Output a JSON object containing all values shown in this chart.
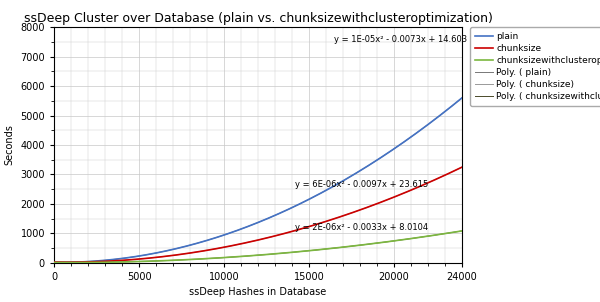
{
  "title": "ssDeep Cluster over Database (plain vs. chunksizewithclusteroptimization)",
  "xlabel": "ssDeep Hashes in Database",
  "ylabel": "Seconds",
  "xlim": [
    0,
    24000
  ],
  "ylim": [
    0,
    8000
  ],
  "xticks": [
    0,
    5000,
    10000,
    15000,
    20000,
    24000
  ],
  "yticks": [
    0,
    1000,
    2000,
    3000,
    4000,
    5000,
    6000,
    7000,
    8000
  ],
  "plain_color": "#4472C4",
  "chunksize_color": "#CC0000",
  "chunksize_opt_color": "#7CB740",
  "poly_plain_color": "#777777",
  "poly_chunksize_color": "#999999",
  "poly_chunksize_opt_color": "#4A4A2A",
  "poly_plain_label": "Poly. ( plain)",
  "poly_chunksize_label": "Poly. ( chunksize)",
  "poly_chunksize_opt_label": "Poly. ( chunksizewithclusteroptimization)",
  "plain_label": "plain",
  "chunksize_label": "chunksize",
  "chunksize_opt_label": "chunksizewithclusteroptimization",
  "plain_eq": "y = 1E-05x² - 0.0073x + 14.603",
  "chunksize_eq": "y = 6E-06x² - 0.0097x + 23.615",
  "chunksize_opt_eq": "y = 2E-06x² - 0.0033x + 8.0104",
  "plain_eq_x": 16500,
  "plain_eq_y": 7500,
  "chunksize_eq_x": 14200,
  "chunksize_eq_y": 2580,
  "chunksize_opt_eq_x": 14200,
  "chunksize_opt_eq_y": 1100,
  "n_points": 241,
  "x_max": 24000,
  "plain_a": 1e-05,
  "plain_b": -0.0073,
  "plain_c": 14.603,
  "chunksize_a": 6e-06,
  "chunksize_b": -0.0097,
  "chunksize_c": 23.615,
  "chunksize_opt_a": 2e-06,
  "chunksize_opt_b": -0.0033,
  "chunksize_opt_c": 8.0104,
  "bg_color": "#FFFFFF",
  "grid_color": "#C8C8C8",
  "title_fontsize": 9,
  "axis_label_fontsize": 7,
  "tick_fontsize": 7,
  "legend_fontsize": 6.5,
  "eq_fontsize": 6
}
